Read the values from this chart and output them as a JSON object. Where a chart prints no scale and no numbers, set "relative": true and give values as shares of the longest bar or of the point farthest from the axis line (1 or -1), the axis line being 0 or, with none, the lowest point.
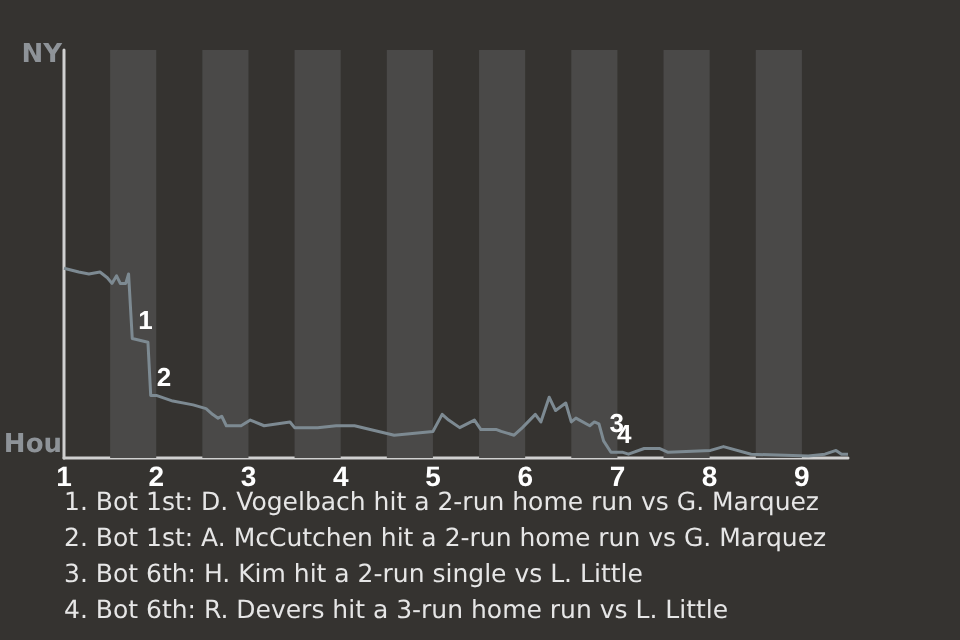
{
  "chart_data": {
    "type": "line",
    "x": [
      1,
      1.16,
      1.27,
      1.39,
      1.47,
      1.52,
      1.57,
      1.61,
      1.67,
      1.7,
      1.74,
      1.91,
      1.94,
      2.0,
      2.18,
      2.4,
      2.54,
      2.61,
      2.67,
      2.71,
      2.76,
      2.92,
      3.02,
      3.17,
      3.45,
      3.5,
      3.75,
      3.95,
      4.15,
      4.58,
      5.0,
      5.1,
      5.17,
      5.29,
      5.45,
      5.52,
      5.69,
      5.74,
      5.88,
      5.97,
      6.11,
      6.17,
      6.26,
      6.33,
      6.44,
      6.5,
      6.55,
      6.7,
      6.75,
      6.8,
      6.85,
      6.93,
      7.06,
      7.12,
      7.29,
      7.46,
      7.55,
      8.01,
      8.15,
      8.45,
      9.07,
      9.25,
      9.37,
      9.43,
      9.5
    ],
    "series": [
      {
        "color": "#7d8a92",
        "values": [
          1,
          0.98,
          0.97,
          0.98,
          0.95,
          0.92,
          0.96,
          0.92,
          0.92,
          0.97,
          0.63,
          0.61,
          0.33,
          0.33,
          0.3,
          0.28,
          0.26,
          0.23,
          0.21,
          0.22,
          0.17,
          0.17,
          0.2,
          0.17,
          0.19,
          0.16,
          0.16,
          0.17,
          0.17,
          0.12,
          0.14,
          0.23,
          0.2,
          0.16,
          0.2,
          0.15,
          0.15,
          0.14,
          0.12,
          0.16,
          0.23,
          0.19,
          0.32,
          0.25,
          0.29,
          0.19,
          0.21,
          0.17,
          0.19,
          0.18,
          0.09,
          0.03,
          0.03,
          0.02,
          0.05,
          0.05,
          0.03,
          0.04,
          0.06,
          0.02,
          0.01,
          0.02,
          0.04,
          0.02,
          0.02
        ]
      }
    ],
    "relative": true,
    "xlim": [
      1,
      9.5
    ],
    "xticks": [
      1,
      2,
      3,
      4,
      5,
      6,
      7,
      8,
      9
    ],
    "marker": "none",
    "bands": [
      {
        "axis": "x",
        "from": 1.5,
        "to": 2,
        "color": "#4a4948"
      },
      {
        "axis": "x",
        "from": 2.5,
        "to": 3,
        "color": "#4a4948"
      },
      {
        "axis": "x",
        "from": 3.5,
        "to": 4,
        "color": "#4a4948"
      },
      {
        "axis": "x",
        "from": 4.5,
        "to": 5,
        "color": "#4a4948"
      },
      {
        "axis": "x",
        "from": 5.5,
        "to": 6,
        "color": "#4a4948"
      },
      {
        "axis": "x",
        "from": 6.5,
        "to": 7,
        "color": "#4a4948"
      },
      {
        "axis": "x",
        "from": 7.5,
        "to": 8,
        "color": "#4a4948"
      },
      {
        "axis": "x",
        "from": 8.5,
        "to": 9,
        "color": "#4a4948"
      }
    ],
    "annotations": [
      "NY",
      "Hou",
      {
        "text": "1",
        "x": 1.74,
        "y": 0.63
      },
      {
        "text": "2",
        "x": 1.94,
        "y": 0.33
      },
      {
        "text": "3",
        "x": 6.85,
        "y": 0.09
      },
      {
        "text": "4",
        "x": 6.93,
        "y": 0.03
      },
      "1. Bot 1st: D. Vogelbach hit a 2-run home run vs G. Marquez",
      "2. Bot 1st: A. McCutchen hit a 2-run home run vs G. Marquez",
      "3. Bot 6th: H. Kim hit a 2-run single vs L. Little",
      "4. Bot 6th: R. Devers hit a 3-run home run vs L. Little"
    ]
  }
}
